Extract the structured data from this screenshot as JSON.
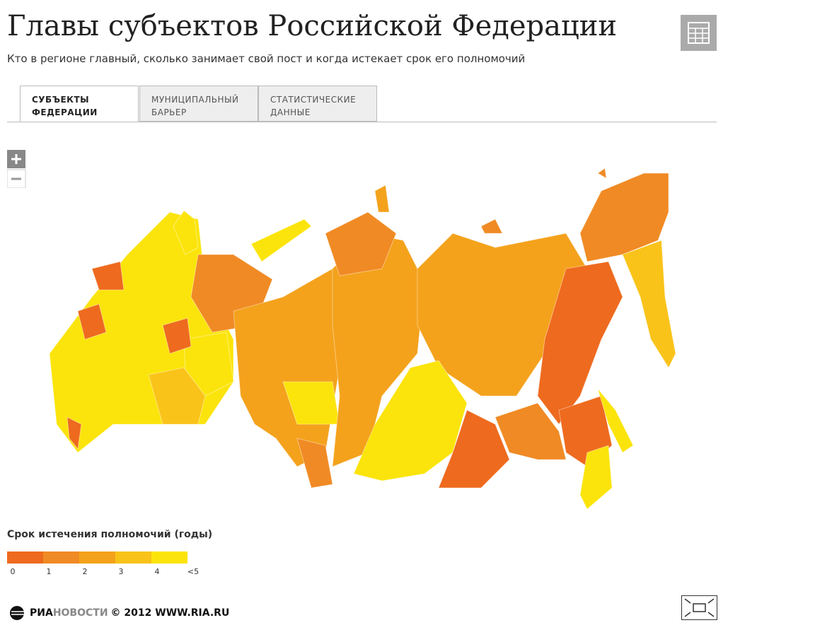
{
  "header": {
    "title": "Главы субъектов Российской Федерации",
    "subtitle": "Кто в регионе главный, сколько занимает свой пост и когда истекает срок его полномочий"
  },
  "tabs": [
    "СУБЪЕКТЫ ФЕДЕРАЦИИ",
    "МУНИЦИПАЛЬНЫЙ БАРЬЕР",
    "СТАТИСТИЧЕСКИЕ ДАННЫЕ"
  ],
  "legend": {
    "title": "Срок истечения полномочий (годы)",
    "ticks": [
      0,
      1,
      2,
      3,
      4,
      "<5"
    ],
    "colors": [
      "#ee6a1e",
      "#f08a24",
      "#f4a21c",
      "#f9c31a",
      "#fbe40b"
    ]
  },
  "footer": {
    "logo_ria": "РИА",
    "logo_news": "НОВОСТИ",
    "copyright": "© 2012 WWW.RIA.RU"
  }
}
